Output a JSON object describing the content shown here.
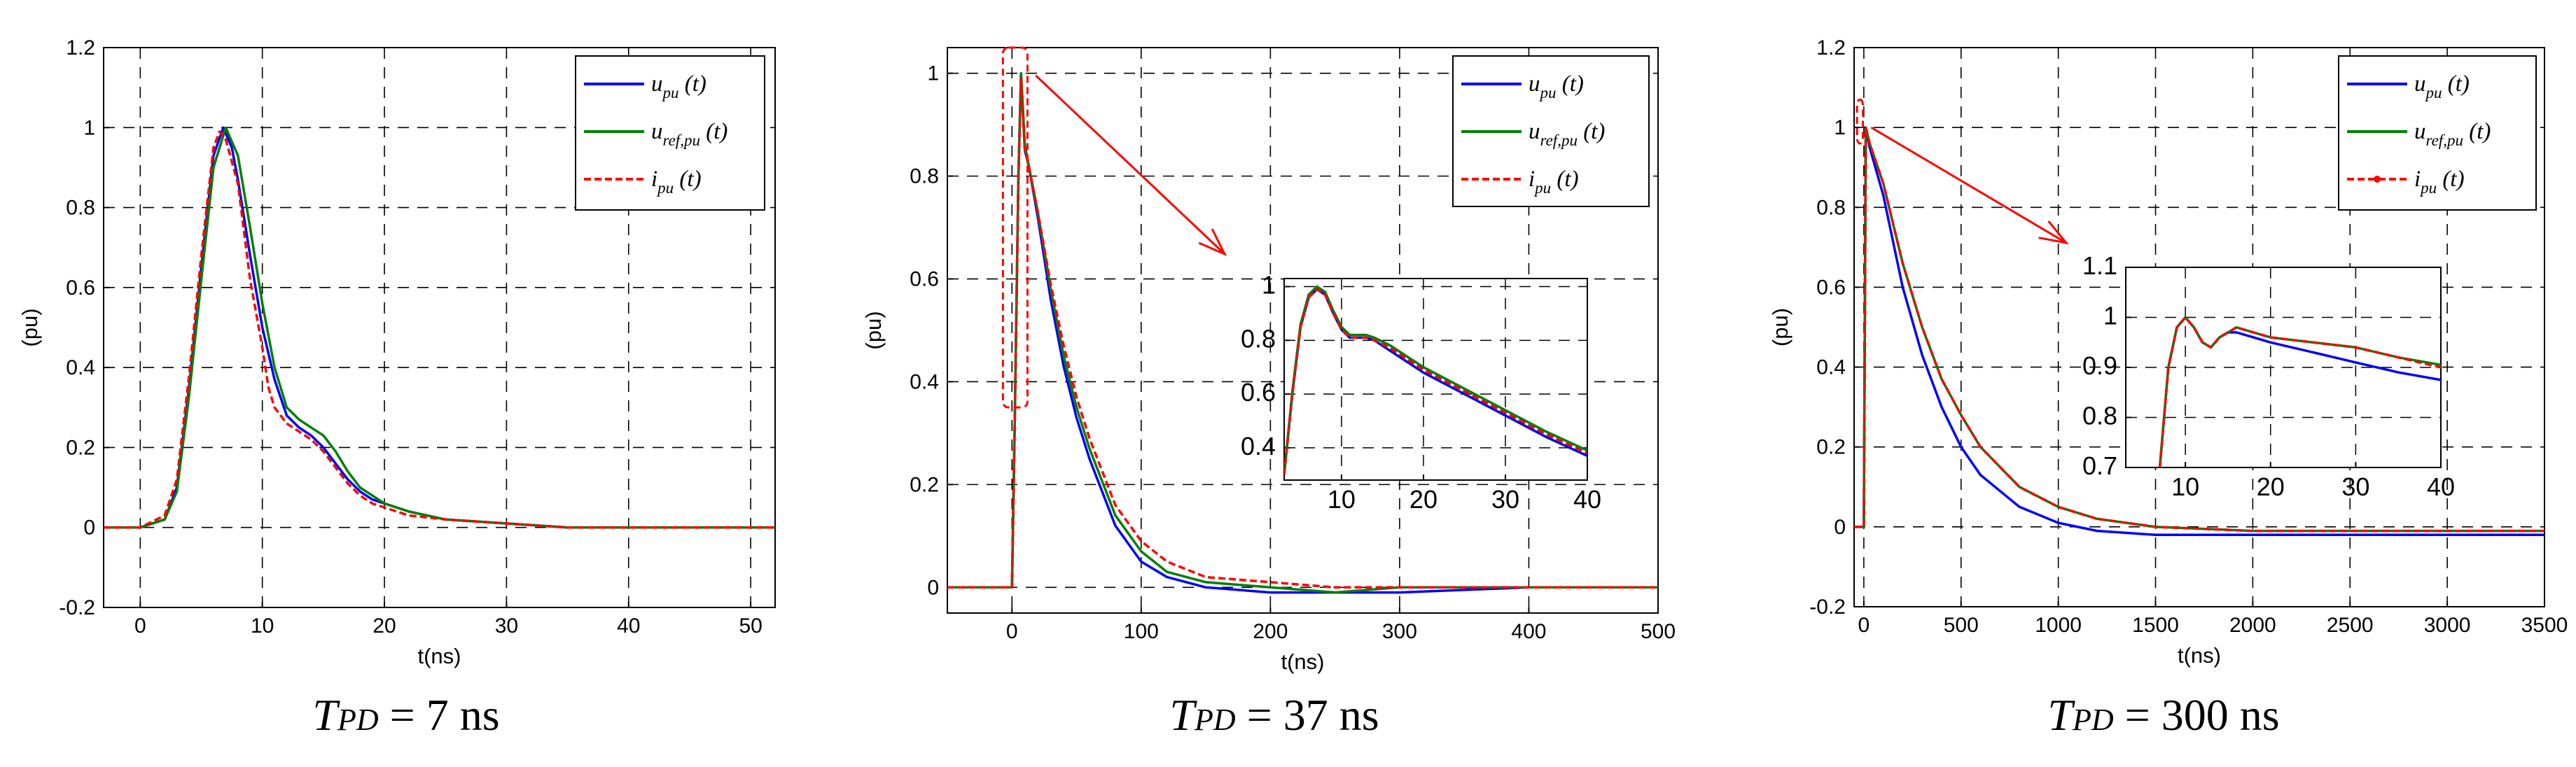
{
  "colors": {
    "u_pu": "#0000ff",
    "u_ref_pu": "#008000",
    "i_pu": "#ff0000",
    "zoom": "#ff0000"
  },
  "captions": [
    {
      "main": "T",
      "sub": "PD",
      "rest": " = 7 ns"
    },
    {
      "main": "T",
      "sub": "PD",
      "rest": " = 37 ns"
    },
    {
      "main": "T",
      "sub": "PD",
      "rest": " = 300 ns"
    }
  ],
  "chart_data": [
    {
      "type": "line",
      "xlabel": "t(ns)",
      "ylabel": "(pu)",
      "xlim": [
        -3,
        52
      ],
      "ylim": [
        -0.2,
        1.2
      ],
      "xticks": [
        0,
        10,
        20,
        30,
        40,
        50
      ],
      "yticks": [
        -0.2,
        0,
        0.2,
        0.4,
        0.6,
        0.8,
        1,
        1.2
      ],
      "xtick_labels": [
        "0",
        "10",
        "20",
        "30",
        "40",
        "50"
      ],
      "ytick_labels": [
        "-0.2",
        "0",
        "0.2",
        "0.4",
        "0.6",
        "0.8",
        "1",
        "1.2"
      ],
      "grid": true,
      "legend": "top-right",
      "legend_entries": [
        {
          "base": "u",
          "sub": "pu",
          "tail": " (t)",
          "style": "solid"
        },
        {
          "base": "u",
          "sub": "ref,pu",
          "tail": " (t)",
          "style": "solid"
        },
        {
          "base": "i",
          "sub": "pu",
          "tail": " (t)",
          "style": "dashed"
        }
      ],
      "series": [
        {
          "name": "u_pu (t)",
          "x": [
            -3,
            0,
            2,
            3,
            4,
            5,
            6,
            6.8,
            7.5,
            8,
            9,
            10,
            11,
            12,
            13,
            14,
            15,
            16,
            17,
            18,
            19,
            20,
            22,
            25,
            30,
            35,
            40,
            45,
            52
          ],
          "y": [
            0,
            0,
            0.02,
            0.1,
            0.35,
            0.65,
            0.93,
            1.0,
            0.95,
            0.87,
            0.68,
            0.5,
            0.37,
            0.28,
            0.25,
            0.23,
            0.2,
            0.16,
            0.12,
            0.09,
            0.07,
            0.06,
            0.04,
            0.02,
            0.01,
            0,
            0,
            0,
            0
          ]
        },
        {
          "name": "u_ref,pu (t)",
          "x": [
            -3,
            0,
            2,
            3,
            4,
            5,
            6,
            7,
            8,
            9,
            10,
            11,
            12,
            13,
            14,
            15,
            16,
            17,
            18,
            19,
            20,
            22,
            25,
            30,
            35,
            40,
            45,
            52
          ],
          "y": [
            0,
            0,
            0.02,
            0.09,
            0.33,
            0.62,
            0.9,
            1.0,
            0.93,
            0.75,
            0.56,
            0.4,
            0.3,
            0.27,
            0.25,
            0.23,
            0.19,
            0.14,
            0.1,
            0.08,
            0.06,
            0.04,
            0.02,
            0.01,
            0,
            0,
            0,
            0
          ]
        },
        {
          "name": "i_pu (t)",
          "x": [
            -3,
            0,
            2,
            3,
            4,
            5,
            6,
            6.5,
            7,
            8,
            9,
            10,
            10.5,
            11,
            12,
            13,
            14,
            15,
            16,
            17,
            18,
            19,
            20,
            22,
            25,
            30,
            35,
            40,
            45,
            52
          ],
          "y": [
            0,
            0,
            0.03,
            0.12,
            0.38,
            0.68,
            0.95,
            0.99,
            0.97,
            0.86,
            0.62,
            0.45,
            0.35,
            0.3,
            0.26,
            0.24,
            0.22,
            0.19,
            0.15,
            0.11,
            0.08,
            0.06,
            0.05,
            0.03,
            0.02,
            0.01,
            0,
            0,
            0,
            0
          ]
        }
      ]
    },
    {
      "type": "line",
      "xlabel": "t(ns)",
      "ylabel": "(pu)",
      "xlim": [
        -50,
        500
      ],
      "ylim": [
        -0.05,
        1.05
      ],
      "xticks": [
        0,
        100,
        200,
        300,
        400,
        500
      ],
      "yticks": [
        0,
        0.2,
        0.4,
        0.6,
        0.8,
        1
      ],
      "xtick_labels": [
        "0",
        "100",
        "200",
        "300",
        "400",
        "500"
      ],
      "ytick_labels": [
        "0",
        "0.2",
        "0.4",
        "0.6",
        "0.8",
        "1"
      ],
      "grid": true,
      "legend": "top-right",
      "legend_entries": [
        {
          "base": "u",
          "sub": "pu",
          "tail": " (t)",
          "style": "solid"
        },
        {
          "base": "u",
          "sub": "ref,pu",
          "tail": " (t)",
          "style": "solid"
        },
        {
          "base": "i",
          "sub": "pu",
          "tail": " (t)",
          "style": "dashed"
        }
      ],
      "series": [
        {
          "name": "u_pu (t)",
          "x": [
            -50,
            0,
            2,
            5,
            7,
            10,
            13,
            20,
            30,
            40,
            50,
            60,
            80,
            100,
            120,
            150,
            200,
            250,
            300,
            400,
            500
          ],
          "y": [
            0,
            0,
            0.3,
            0.8,
            1.0,
            0.85,
            0.82,
            0.72,
            0.56,
            0.43,
            0.33,
            0.25,
            0.12,
            0.05,
            0.02,
            0,
            -0.01,
            -0.01,
            -0.01,
            0,
            0
          ]
        },
        {
          "name": "u_ref,pu (t)",
          "x": [
            -50,
            0,
            2,
            5,
            7,
            10,
            13,
            20,
            30,
            40,
            50,
            60,
            80,
            100,
            120,
            150,
            200,
            250,
            300,
            400,
            500
          ],
          "y": [
            0,
            0,
            0.3,
            0.8,
            1.0,
            0.86,
            0.82,
            0.73,
            0.58,
            0.45,
            0.35,
            0.27,
            0.14,
            0.07,
            0.03,
            0.01,
            0,
            -0.01,
            0,
            0,
            0
          ]
        },
        {
          "name": "i_pu (t)",
          "x": [
            -50,
            0,
            2,
            5,
            7,
            10,
            13,
            20,
            30,
            40,
            50,
            60,
            80,
            100,
            120,
            150,
            200,
            250,
            300,
            400,
            500
          ],
          "y": [
            0,
            0,
            0.3,
            0.8,
            0.99,
            0.85,
            0.82,
            0.73,
            0.59,
            0.47,
            0.37,
            0.29,
            0.16,
            0.09,
            0.05,
            0.02,
            0.01,
            0,
            0,
            0,
            0
          ]
        }
      ],
      "inset": {
        "xlim": [
          3,
          40
        ],
        "ylim": [
          0.28,
          1.03
        ],
        "xticks": [
          10,
          20,
          30,
          40
        ],
        "yticks": [
          0.4,
          0.6,
          0.8,
          1
        ],
        "xtick_labels": [
          "10",
          "20",
          "30",
          "40"
        ],
        "ytick_labels": [
          "0.4",
          "0.6",
          "0.8",
          "1"
        ],
        "series": [
          {
            "name": "u_pu (t)",
            "x": [
              3,
              4,
              5,
              6,
              7,
              8,
              9,
              10,
              11,
              12,
              13,
              14,
              16,
              18,
              20,
              25,
              30,
              35,
              40
            ],
            "y": [
              0.3,
              0.6,
              0.85,
              0.96,
              0.99,
              0.97,
              0.9,
              0.84,
              0.81,
              0.81,
              0.81,
              0.8,
              0.76,
              0.72,
              0.68,
              0.6,
              0.52,
              0.44,
              0.37
            ]
          },
          {
            "name": "u_ref,pu (t)",
            "x": [
              3,
              4,
              5,
              6,
              7,
              8,
              9,
              10,
              11,
              12,
              13,
              14,
              16,
              18,
              20,
              25,
              30,
              35,
              40
            ],
            "y": [
              0.3,
              0.61,
              0.86,
              0.97,
              1.0,
              0.98,
              0.91,
              0.85,
              0.82,
              0.82,
              0.82,
              0.81,
              0.78,
              0.74,
              0.7,
              0.62,
              0.54,
              0.46,
              0.39
            ]
          },
          {
            "name": "i_pu (t)",
            "x": [
              3,
              4,
              5,
              6,
              7,
              8,
              9,
              10,
              11,
              12,
              13,
              14,
              16,
              18,
              20,
              25,
              30,
              35,
              40
            ],
            "y": [
              0.3,
              0.6,
              0.85,
              0.96,
              0.99,
              0.97,
              0.9,
              0.84,
              0.81,
              0.81,
              0.81,
              0.8,
              0.77,
              0.73,
              0.69,
              0.61,
              0.53,
              0.45,
              0.38
            ]
          }
        ]
      }
    },
    {
      "type": "line",
      "xlabel": "t(ns)",
      "ylabel": "(pu)",
      "xlim": [
        -50,
        3500
      ],
      "ylim": [
        -0.2,
        1.2
      ],
      "xticks": [
        0,
        500,
        1000,
        1500,
        2000,
        2500,
        3000,
        3500
      ],
      "yticks": [
        -0.2,
        0,
        0.2,
        0.4,
        0.6,
        0.8,
        1,
        1.2
      ],
      "xtick_labels": [
        "0",
        "500",
        "1000",
        "1500",
        "2000",
        "2500",
        "3000",
        "3500"
      ],
      "ytick_labels": [
        "-0.2",
        "0",
        "0.2",
        "0.4",
        "0.6",
        "0.8",
        "1",
        "1.2"
      ],
      "grid": true,
      "legend": "top-right",
      "legend_entries": [
        {
          "base": "u",
          "sub": "pu",
          "tail": " (t)",
          "style": "solid"
        },
        {
          "base": "u",
          "sub": "ref,pu",
          "tail": " (t)",
          "style": "solid"
        },
        {
          "base": "i",
          "sub": "pu",
          "tail": " (t)",
          "style": "dashed-marker"
        }
      ],
      "series": [
        {
          "name": "u_pu (t)",
          "x": [
            -50,
            0,
            5,
            10,
            30,
            100,
            200,
            300,
            400,
            500,
            600,
            800,
            1000,
            1200,
            1500,
            2000,
            2500,
            3000,
            3500
          ],
          "y": [
            0,
            0,
            0.5,
            1.0,
            0.95,
            0.83,
            0.6,
            0.43,
            0.3,
            0.2,
            0.13,
            0.05,
            0.01,
            -0.01,
            -0.02,
            -0.02,
            -0.02,
            -0.02,
            -0.02
          ]
        },
        {
          "name": "u_ref,pu (t)",
          "x": [
            -50,
            0,
            5,
            10,
            30,
            100,
            200,
            300,
            400,
            500,
            600,
            800,
            1000,
            1200,
            1500,
            2000,
            2500,
            3000,
            3500
          ],
          "y": [
            0,
            0,
            0.5,
            1.0,
            0.96,
            0.86,
            0.66,
            0.5,
            0.37,
            0.28,
            0.2,
            0.1,
            0.05,
            0.02,
            0,
            -0.01,
            -0.01,
            -0.01,
            -0.01
          ]
        },
        {
          "name": "i_pu (t)",
          "x": [
            -50,
            0,
            5,
            10,
            30,
            100,
            200,
            300,
            400,
            500,
            600,
            800,
            1000,
            1200,
            1500,
            2000,
            2500,
            3000,
            3500
          ],
          "y": [
            0,
            0,
            0.5,
            1.0,
            0.96,
            0.86,
            0.66,
            0.5,
            0.37,
            0.28,
            0.2,
            0.1,
            0.05,
            0.02,
            0,
            -0.01,
            -0.01,
            -0.01,
            -0.01
          ]
        }
      ],
      "inset": {
        "xlim": [
          3,
          40
        ],
        "ylim": [
          0.7,
          1.1
        ],
        "xticks": [
          10,
          20,
          30,
          40
        ],
        "yticks": [
          0.7,
          0.8,
          0.9,
          1,
          1.1
        ],
        "xtick_labels": [
          "10",
          "20",
          "30",
          "40"
        ],
        "ytick_labels": [
          "0.7",
          "0.8",
          "0.9",
          "1",
          "1.1"
        ],
        "series": [
          {
            "name": "u_pu (t)",
            "x": [
              7,
              8,
              9,
              10,
              11,
              12,
              13,
              14,
              15,
              16,
              18,
              20,
              25,
              30,
              35,
              40
            ],
            "y": [
              0.7,
              0.9,
              0.98,
              1.0,
              0.98,
              0.95,
              0.94,
              0.96,
              0.97,
              0.97,
              0.96,
              0.95,
              0.93,
              0.91,
              0.89,
              0.875
            ]
          },
          {
            "name": "u_ref,pu (t)",
            "x": [
              7,
              8,
              9,
              10,
              11,
              12,
              13,
              14,
              15,
              16,
              18,
              20,
              25,
              30,
              35,
              40
            ],
            "y": [
              0.7,
              0.9,
              0.98,
              1.0,
              0.98,
              0.95,
              0.94,
              0.96,
              0.97,
              0.98,
              0.97,
              0.96,
              0.95,
              0.94,
              0.92,
              0.905
            ]
          },
          {
            "name": "i_pu (t)",
            "x": [
              7,
              8,
              9,
              10,
              11,
              12,
              13,
              14,
              15,
              16,
              18,
              20,
              25,
              30,
              35,
              40
            ],
            "y": [
              0.7,
              0.9,
              0.98,
              1.0,
              0.98,
              0.95,
              0.94,
              0.96,
              0.97,
              0.98,
              0.97,
              0.96,
              0.95,
              0.94,
              0.92,
              0.9
            ]
          }
        ]
      }
    }
  ]
}
